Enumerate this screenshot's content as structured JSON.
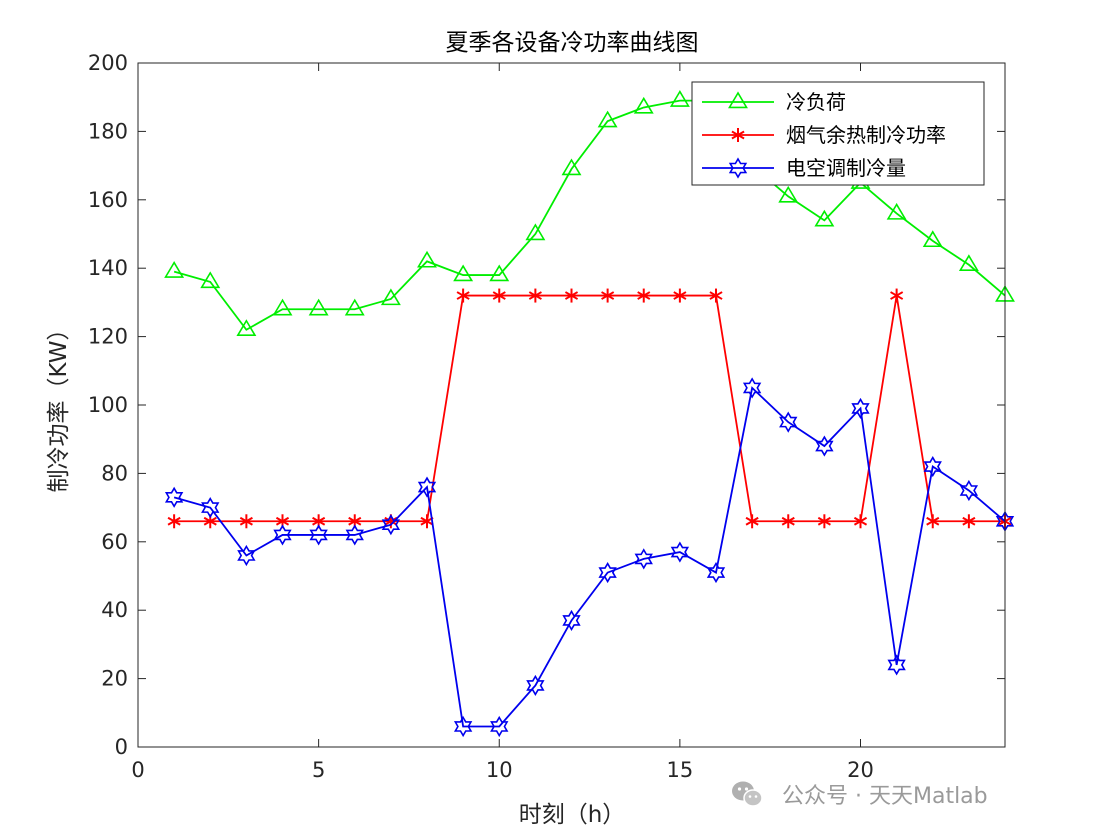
{
  "chart_data": {
    "type": "line",
    "title": "夏季各设备冷功率曲线图",
    "xlabel": "时刻（h）",
    "ylabel": "制冷功率（KW）",
    "xlim": [
      0,
      24
    ],
    "ylim": [
      0,
      200
    ],
    "xticks": [
      0,
      5,
      10,
      15,
      20
    ],
    "yticks": [
      0,
      20,
      40,
      60,
      80,
      100,
      120,
      140,
      160,
      180,
      200
    ],
    "grid": false,
    "legend_position": "top-right",
    "x": [
      1,
      2,
      3,
      4,
      5,
      6,
      7,
      8,
      9,
      10,
      11,
      12,
      13,
      14,
      15,
      16,
      17,
      18,
      19,
      20,
      21,
      22,
      23,
      24
    ],
    "series": [
      {
        "name": "冷负荷",
        "color": "#00ee00",
        "marker": "triangle",
        "values": [
          139,
          136,
          122,
          128,
          128,
          128,
          131,
          142,
          138,
          138,
          150,
          169,
          183,
          187,
          189,
          189,
          170,
          161,
          154,
          165,
          156,
          148,
          141,
          132
        ]
      },
      {
        "name": "烟气余热制冷功率",
        "color": "#ff0000",
        "marker": "asterisk",
        "values": [
          66,
          66,
          66,
          66,
          66,
          66,
          66,
          66,
          132,
          132,
          132,
          132,
          132,
          132,
          132,
          132,
          66,
          66,
          66,
          66,
          132,
          66,
          66,
          66
        ]
      },
      {
        "name": "电空调制冷量",
        "color": "#0000ee",
        "marker": "hexagram",
        "values": [
          73,
          70,
          56,
          62,
          62,
          62,
          65,
          76,
          6,
          6,
          18,
          37,
          51,
          55,
          57,
          51,
          105,
          95,
          88,
          99,
          24,
          82,
          75,
          66
        ]
      }
    ]
  },
  "watermark": {
    "icon": "wechat-icon",
    "text": "公众号 · 天天Matlab"
  }
}
